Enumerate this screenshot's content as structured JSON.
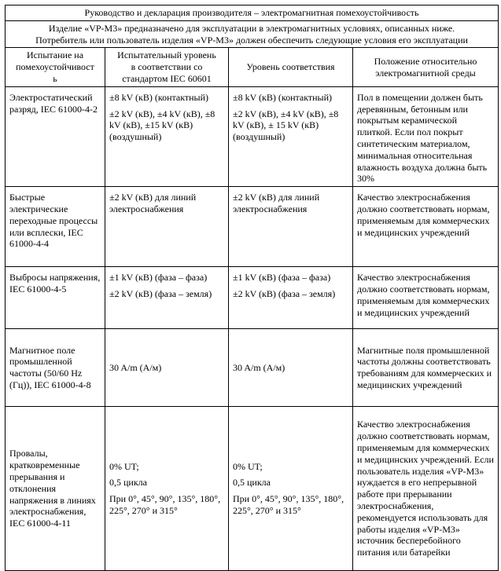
{
  "page": {
    "background_color": "#ffffff",
    "text_color": "#000000",
    "border_color": "#000000"
  },
  "table": {
    "title": "Руководство и декларация производителя – электромагнитная помехоустойчивость",
    "description": "Изделие «VP-M3» предназначено для эксплуатации в электромагнитных условиях, описанных ниже.\nПотребитель или пользователь изделия «VP-M3» должен обеспечить следующие условия его эксплуатации",
    "columns": [
      "Испытание на\nпомехоустойчивост\nь",
      "Испытательный уровень\nв соответствии со\nстандартом IEC 60601",
      "Уровень соответствия",
      "Положение относительно\nэлектромагнитной среды"
    ],
    "rows": [
      {
        "test": "Электростатический разряд, IEC 61000-4-2",
        "test_level": "±8 kV (кВ) (контактный)\n±2 kV (кВ), ±4 kV (кВ), ±8 kV (кВ), ±15 kV (кВ) (воздушный)",
        "compliance_level": "±8 kV (кВ) (контактный)\n±2 kV (кВ), ±4 kV (кВ), ±8 kV (кВ), ± 15 kV (кВ) (воздушный)",
        "environment": "Пол в помещении должен быть деревянным, бетонным или покрытым керамической плиткой. Если пол покрыт синтетическим материалом, минимальная относительная влажность воздуха должна быть 30%"
      },
      {
        "test": "Быстрые электрические переходные процессы или всплески, IEC 61000-4-4",
        "test_level": "±2 kV (кВ) для линий электроснабжения",
        "compliance_level": "±2 kV (кВ) для линий электроснабжения",
        "environment": "Качество электроснабжения должно соответствовать нормам, применяемым для коммерческих и медицинских учреждений"
      },
      {
        "test": "Выбросы напряжения, IEC 61000-4-5",
        "test_level": "±1 kV (кВ) (фаза – фаза)\n±2 kV (кВ) (фаза – земля)",
        "compliance_level": "±1 kV (кВ) (фаза – фаза)\n±2 kV (кВ) (фаза – земля)",
        "environment": "Качество электроснабжения должно соответствовать нормам, применяемым для коммерческих и медицинских учреждений"
      },
      {
        "test": "Магнитное поле промышленной частоты (50/60 Hz (Гц)), IEC 61000-4-8",
        "test_level": "30 A/m (А/м)",
        "compliance_level": "30 A/m (А/м)",
        "environment": "Магнитные поля промышленной частоты должны соответствовать требованиям для коммерческих и медицинских учреждений"
      },
      {
        "test": "Провалы, кратковременные прерывания и отклонения напряжения в линиях электроснабжения, IEC 61000-4-11",
        "test_level": "0% UT;\n0,5 цикла\nПри 0°, 45°, 90°, 135°, 180°, 225°, 270° и 315°",
        "compliance_level": "0% UT;\n0,5 цикла\nПри 0°, 45°, 90°, 135°, 180°, 225°, 270° и 315°",
        "environment": "Качество электроснабжения должно соответствовать нормам, применяемым для коммерческих и медицинских учреждений. Если пользователь изделия «VP-M3» нуждается в его непрерывной работе при прерывании электроснабжения, рекомендуется использовать для работы изделия «VP-M3» источник бесперебойного питания или батарейки"
      }
    ]
  }
}
